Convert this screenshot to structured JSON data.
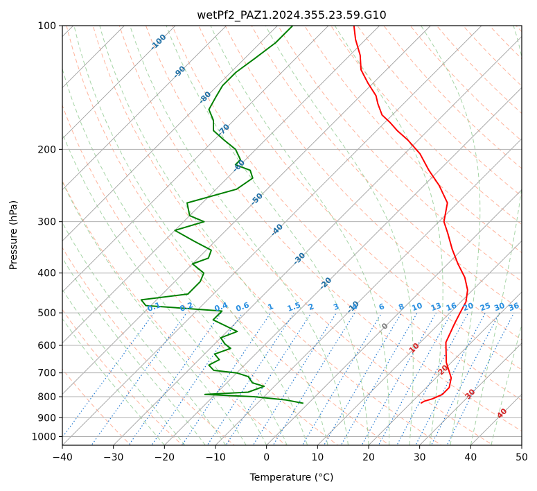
{
  "chart_data": {
    "type": "line",
    "title": "wetPf2_PAZ1.2024.355.23.59.G10",
    "xlabel": "Temperature (°C)",
    "ylabel": "Pressure (hPa)",
    "xlim": [
      -40,
      50
    ],
    "ylim": [
      1050,
      100
    ],
    "y_scale": "log",
    "grid": true,
    "skew": true,
    "x_ticks": [
      -40,
      -30,
      -20,
      -10,
      0,
      10,
      20,
      30,
      40,
      50
    ],
    "x_tick_labels": [
      "−40",
      "−30",
      "−20",
      "−10",
      "0",
      "10",
      "20",
      "30",
      "40",
      "50"
    ],
    "y_ticks": [
      100,
      200,
      300,
      400,
      500,
      600,
      700,
      800,
      900,
      1000
    ],
    "y_tick_labels": [
      "100",
      "200",
      "300",
      "400",
      "500",
      "600",
      "700",
      "800",
      "900",
      "1000"
    ],
    "colors": {
      "temperature": "#ff0000",
      "dewpoint": "#008000",
      "isotherm": "#a0a0a0",
      "dry_adiabat": "#ff9a7a",
      "moist_adiabat": "#7fc27f",
      "mixing_ratio": "#1f77d0",
      "isotherm_label_neg": "#1f6fa5",
      "mixing_label": "#2a8fe0",
      "zero_label": "#808080",
      "pos_label": "#d62728"
    },
    "series": [
      {
        "name": "temperature",
        "pressure": [
          830,
          820,
          810,
          790,
          760,
          720,
          660,
          590,
          530,
          500,
          470,
          440,
          410,
          380,
          350,
          320,
          300,
          270,
          245,
          225,
          205,
          190,
          180,
          172,
          165,
          155,
          148,
          138,
          128,
          118,
          108,
          100
        ],
        "temperature": [
          22,
          22.3,
          23.4,
          24.5,
          24.5,
          23,
          19,
          15,
          13,
          12,
          11,
          9,
          6,
          2,
          -2,
          -6,
          -9,
          -12,
          -17,
          -22,
          -27,
          -32,
          -36,
          -39,
          -42,
          -45,
          -47,
          -51,
          -55,
          -58,
          -62,
          -65
        ]
      },
      {
        "name": "dewpoint",
        "pressure": [
          830,
          815,
          800,
          790,
          780,
          755,
          740,
          715,
          700,
          690,
          670,
          650,
          630,
          610,
          595,
          575,
          555,
          520,
          495,
          480,
          465,
          450,
          420,
          400,
          380,
          368,
          352,
          335,
          315,
          300,
          290,
          270,
          250,
          235,
          225,
          218,
          212,
          200,
          190,
          180,
          170,
          160,
          150,
          140,
          130,
          120,
          110,
          100
        ],
        "temperature": [
          -1,
          -5,
          -12,
          -22,
          -14,
          -12,
          -15,
          -17,
          -20,
          -25,
          -27,
          -26,
          -28,
          -26,
          -28,
          -30,
          -28,
          -35,
          -35,
          -51,
          -53,
          -45,
          -45,
          -46,
          -50,
          -48,
          -49,
          -54,
          -60,
          -56,
          -60,
          -63,
          -56,
          -55,
          -57,
          -61,
          -61,
          -64,
          -68,
          -72,
          -74,
          -77,
          -78,
          -79,
          -79,
          -78,
          -77,
          -77
        ]
      }
    ],
    "isotherm_labels": [
      "-100",
      "-90",
      "-80",
      "-70",
      "-60",
      "-50",
      "-40",
      "-30",
      "-20",
      "-10",
      "0",
      "10",
      "20",
      "30",
      "40"
    ],
    "isotherm_label_values": [
      -100,
      -90,
      -80,
      -70,
      -60,
      -50,
      -40,
      -30,
      -20,
      -10,
      0,
      10,
      20,
      30,
      40
    ],
    "mixing_ratio_labels": [
      "0.1",
      "0.2",
      "0.4",
      "0.6",
      "1",
      "1.5",
      "2",
      "3",
      "4",
      "6",
      "8",
      "10",
      "13",
      "16",
      "20",
      "25",
      "30",
      "36"
    ],
    "mixing_ratio_values": [
      0.1,
      0.2,
      0.4,
      0.6,
      1,
      1.5,
      2,
      3,
      4,
      6,
      8,
      10,
      13,
      16,
      20,
      25,
      30,
      36
    ],
    "mixing_label_pressure": 500
  }
}
